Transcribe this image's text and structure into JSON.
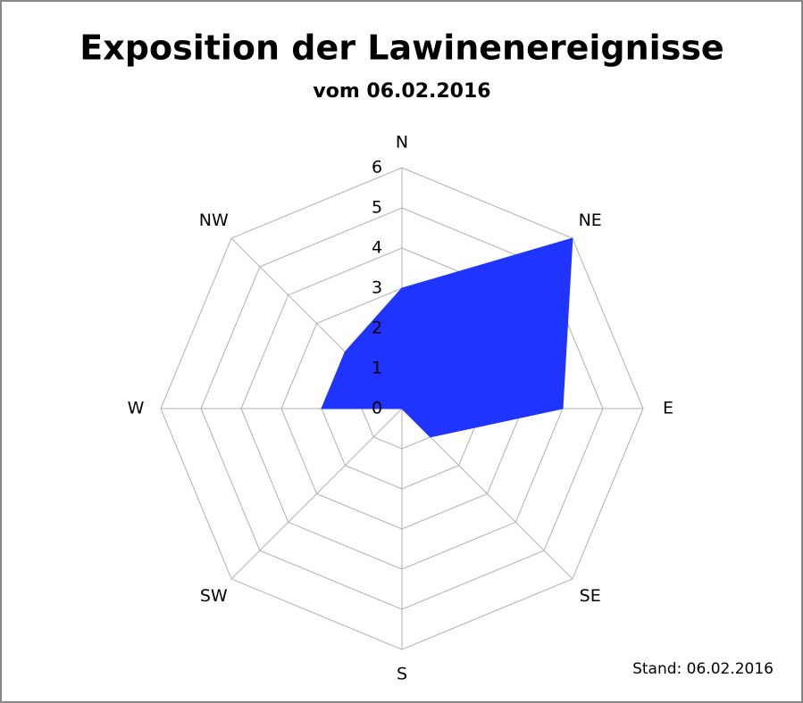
{
  "chart_data": {
    "type": "radar",
    "title": "Exposition der Lawinenereignisse",
    "subtitle": "vom 06.02.2016",
    "note": "Stand: 06.02.2016",
    "categories": [
      "N",
      "NE",
      "E",
      "SE",
      "S",
      "SW",
      "W",
      "NW"
    ],
    "values": [
      3,
      6,
      4,
      1,
      0,
      0,
      2,
      2
    ],
    "color": "#1f35ff",
    "rlim": [
      0,
      6
    ],
    "rticks": [
      0,
      1,
      2,
      3,
      4,
      5,
      6
    ],
    "grid": true
  }
}
